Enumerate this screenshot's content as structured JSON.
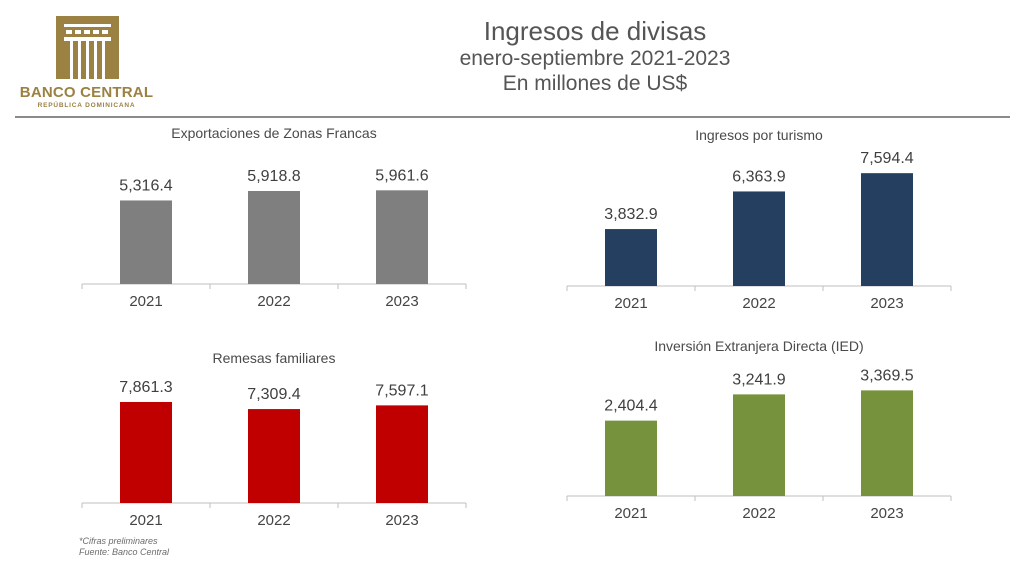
{
  "header": {
    "logo_name": "BANCO CENTRAL",
    "logo_subtitle": "REPÚBLICA DOMINICANA",
    "title": "Ingresos de divisas",
    "subtitle": "enero-septiembre 2021-2023",
    "units": "En millones de US$",
    "brand_color": "#9b8142"
  },
  "footnote": {
    "line1": "*Cifras preliminares",
    "line2": "Fuente: Banco Central"
  },
  "chart_data": [
    {
      "id": "zonas-francas",
      "type": "bar",
      "title": "Exportaciones de Zonas Francas",
      "categories": [
        "2021",
        "2022",
        "2023"
      ],
      "values": [
        5316.4,
        5918.8,
        5961.6
      ],
      "labels": [
        "5,316.4",
        "5,918.8",
        "5,961.6"
      ],
      "color": "#7f7f7f",
      "xlabel": "",
      "ylabel": "",
      "ylim": [
        0,
        7000
      ],
      "grid": false,
      "legend": "none"
    },
    {
      "id": "turismo",
      "type": "bar",
      "title": "Ingresos por turismo",
      "categories": [
        "2021",
        "2022",
        "2023"
      ],
      "values": [
        3832.9,
        6363.9,
        7594.4
      ],
      "labels": [
        "3,832.9",
        "6,363.9",
        "7,594.4"
      ],
      "color": "#243f60",
      "xlabel": "",
      "ylabel": "",
      "ylim": [
        0,
        8750
      ],
      "grid": false,
      "legend": "none"
    },
    {
      "id": "remesas",
      "type": "bar",
      "title": "Remesas familiares",
      "categories": [
        "2021",
        "2022",
        "2023"
      ],
      "values": [
        7861.3,
        7309.4,
        7597.1
      ],
      "labels": [
        "7,861.3",
        "7,309.4",
        "7,597.1"
      ],
      "color": "#c00000",
      "xlabel": "",
      "ylabel": "",
      "ylim": [
        0,
        7860
      ],
      "grid": false,
      "legend": "none"
    },
    {
      "id": "ied",
      "type": "bar",
      "title": "Inversión Extranjera Directa (IED)",
      "categories": [
        "2021",
        "2022",
        "2023"
      ],
      "values": [
        2404.4,
        3241.9,
        3369.5
      ],
      "labels": [
        "2,404.4",
        "3,241.9",
        "3,369.5"
      ],
      "color": "#76923c",
      "xlabel": "",
      "ylabel": "",
      "ylim": [
        0,
        3350
      ],
      "grid": false,
      "legend": "none"
    }
  ]
}
